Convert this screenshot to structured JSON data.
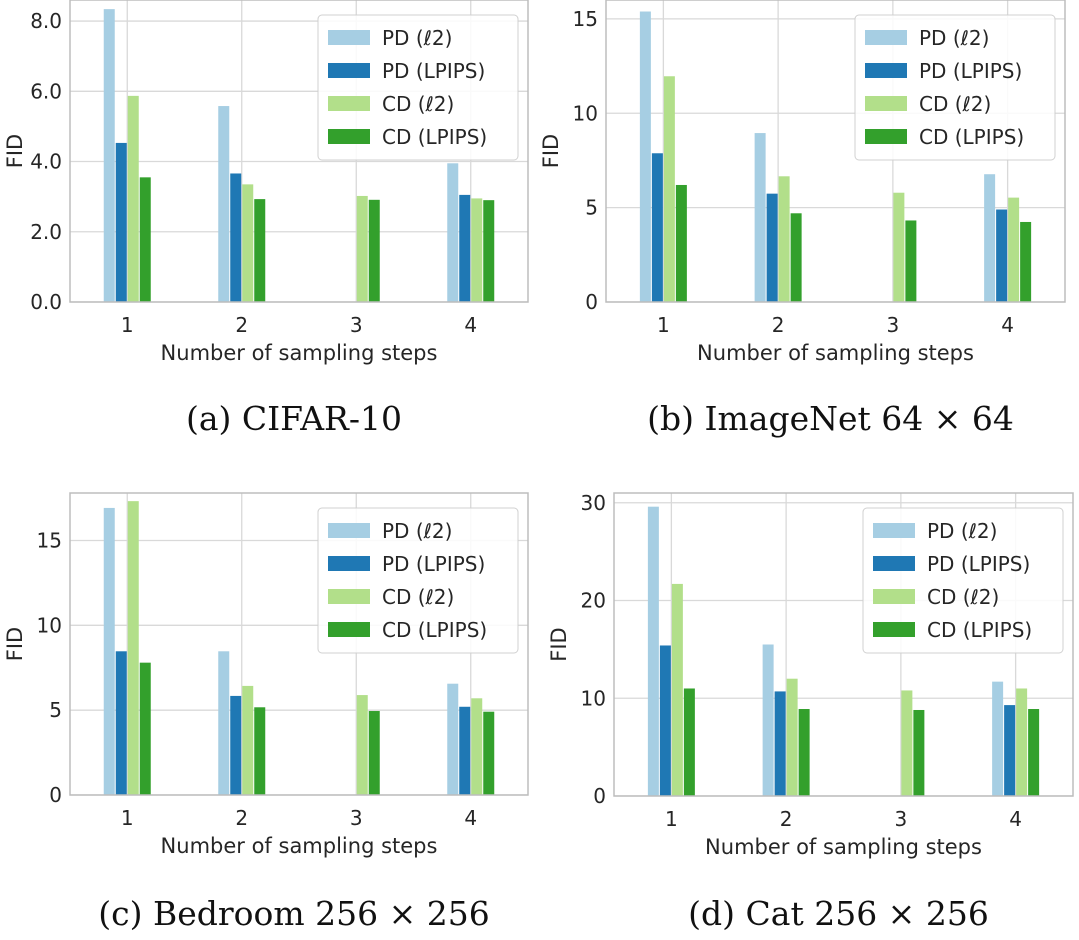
{
  "series_names": [
    "PD (ℓ2)",
    "PD (LPIPS)",
    "CD (ℓ2)",
    "CD (LPIPS)"
  ],
  "series_colors": [
    "#a6cee3",
    "#1f78b4",
    "#b2df8a",
    "#33a02c"
  ],
  "chart_data": [
    {
      "type": "bar",
      "caption": "(a) CIFAR-10",
      "xlabel": "Number of sampling steps",
      "ylabel": "FID",
      "categories": [
        "1",
        "2",
        "3",
        "4"
      ],
      "ylim": [
        0,
        8.6
      ],
      "yticks": [
        0,
        2,
        4,
        6,
        8
      ],
      "ytick_labels": [
        "0.0",
        "2.0",
        "4.0",
        "6.0",
        "8.0"
      ],
      "legend": "top-right",
      "grid": true,
      "series": [
        {
          "name": "PD (ℓ2)",
          "values": [
            8.34,
            5.58,
            null,
            3.95
          ]
        },
        {
          "name": "PD (LPIPS)",
          "values": [
            4.53,
            3.66,
            null,
            3.05
          ]
        },
        {
          "name": "CD (ℓ2)",
          "values": [
            5.87,
            3.35,
            3.02,
            2.95
          ]
        },
        {
          "name": "CD (LPIPS)",
          "values": [
            3.55,
            2.93,
            2.91,
            2.9
          ]
        }
      ]
    },
    {
      "type": "bar",
      "caption": "(b) ImageNet 64 × 64",
      "xlabel": "Number of sampling steps",
      "ylabel": "FID",
      "categories": [
        "1",
        "2",
        "3",
        "4"
      ],
      "ylim": [
        0,
        16
      ],
      "yticks": [
        0,
        5,
        10,
        15
      ],
      "ytick_labels": [
        "0",
        "5",
        "10",
        "15"
      ],
      "legend": "top-right",
      "grid": true,
      "series": [
        {
          "name": "PD (ℓ2)",
          "values": [
            15.39,
            8.95,
            null,
            6.77
          ]
        },
        {
          "name": "PD (LPIPS)",
          "values": [
            7.88,
            5.74,
            null,
            4.9
          ]
        },
        {
          "name": "CD (ℓ2)",
          "values": [
            11.96,
            6.66,
            5.79,
            5.53
          ]
        },
        {
          "name": "CD (LPIPS)",
          "values": [
            6.2,
            4.7,
            4.32,
            4.24
          ]
        }
      ]
    },
    {
      "type": "bar",
      "caption": "(c) Bedroom 256 × 256",
      "xlabel": "Number of sampling steps",
      "ylabel": "FID",
      "categories": [
        "1",
        "2",
        "3",
        "4"
      ],
      "ylim": [
        0,
        17.8
      ],
      "yticks": [
        0,
        5,
        10,
        15
      ],
      "ytick_labels": [
        "0",
        "5",
        "10",
        "15"
      ],
      "legend": "top-right",
      "grid": true,
      "series": [
        {
          "name": "PD (ℓ2)",
          "values": [
            16.92,
            8.47,
            null,
            6.56
          ]
        },
        {
          "name": "PD (LPIPS)",
          "values": [
            8.47,
            5.84,
            null,
            5.2
          ]
        },
        {
          "name": "CD (ℓ2)",
          "values": [
            17.32,
            6.43,
            5.89,
            5.7
          ]
        },
        {
          "name": "CD (LPIPS)",
          "values": [
            7.8,
            5.17,
            4.95,
            4.91
          ]
        }
      ]
    },
    {
      "type": "bar",
      "caption": "(d) Cat 256 × 256",
      "xlabel": "Number of sampling steps",
      "ylabel": "FID",
      "categories": [
        "1",
        "2",
        "3",
        "4"
      ],
      "ylim": [
        0,
        31
      ],
      "yticks": [
        0,
        10,
        20,
        30
      ],
      "ytick_labels": [
        "0",
        "10",
        "20",
        "30"
      ],
      "legend": "top-right",
      "grid": true,
      "series": [
        {
          "name": "PD (ℓ2)",
          "values": [
            29.6,
            15.5,
            null,
            11.7
          ]
        },
        {
          "name": "PD (LPIPS)",
          "values": [
            15.4,
            10.7,
            null,
            9.3
          ]
        },
        {
          "name": "CD (ℓ2)",
          "values": [
            21.7,
            12.0,
            10.8,
            11.0
          ]
        },
        {
          "name": "CD (LPIPS)",
          "values": [
            11.0,
            8.9,
            8.8,
            8.9
          ]
        }
      ]
    }
  ]
}
